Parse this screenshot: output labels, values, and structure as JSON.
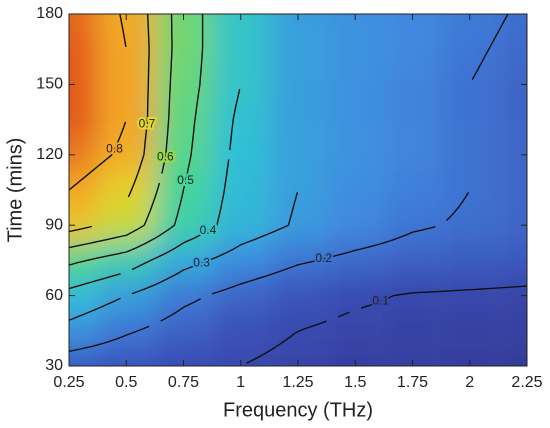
{
  "chart_data": {
    "type": "contour",
    "xlabel": "Frequency (THz)",
    "ylabel": "Time (mins)",
    "x": [
      0.25,
      0.5,
      0.75,
      1,
      1.25,
      1.5,
      1.75,
      2,
      2.25
    ],
    "y": [
      30,
      45,
      60,
      75,
      90,
      105,
      120,
      135,
      150,
      165,
      180
    ],
    "z": [
      [
        0.15,
        0.13,
        0.11,
        0.1,
        0.085,
        0.075,
        0.07,
        0.065,
        0.06
      ],
      [
        0.27,
        0.21,
        0.16,
        0.12,
        0.1,
        0.085,
        0.08,
        0.075,
        0.07
      ],
      [
        0.37,
        0.3,
        0.22,
        0.17,
        0.13,
        0.11,
        0.095,
        0.09,
        0.085
      ],
      [
        0.52,
        0.45,
        0.33,
        0.26,
        0.21,
        0.18,
        0.16,
        0.15,
        0.14
      ],
      [
        0.74,
        0.66,
        0.47,
        0.35,
        0.29,
        0.25,
        0.21,
        0.19,
        0.17
      ],
      [
        0.8,
        0.72,
        0.5,
        0.36,
        0.3,
        0.26,
        0.23,
        0.2,
        0.17
      ],
      [
        0.86,
        0.78,
        0.52,
        0.37,
        0.3,
        0.27,
        0.24,
        0.2,
        0.17
      ],
      [
        0.9,
        0.8,
        0.53,
        0.38,
        0.3,
        0.27,
        0.24,
        0.2,
        0.17
      ],
      [
        0.9,
        0.8,
        0.54,
        0.4,
        0.3,
        0.27,
        0.24,
        0.2,
        0.17
      ],
      [
        0.9,
        0.8,
        0.55,
        0.4,
        0.3,
        0.27,
        0.25,
        0.21,
        0.18
      ],
      [
        0.88,
        0.79,
        0.55,
        0.4,
        0.3,
        0.27,
        0.25,
        0.22,
        0.19
      ]
    ],
    "levels": [
      0.1,
      0.2,
      0.3,
      0.4,
      0.5,
      0.6,
      0.7,
      0.8
    ],
    "clim": [
      0,
      1
    ],
    "xlim": [
      0.25,
      2.25
    ],
    "xticks": [
      0.25,
      0.5,
      0.75,
      1,
      1.25,
      1.5,
      1.75,
      2,
      2.25
    ],
    "ylim": [
      30,
      180
    ],
    "yticks": [
      30,
      60,
      90,
      120,
      150,
      180
    ]
  }
}
